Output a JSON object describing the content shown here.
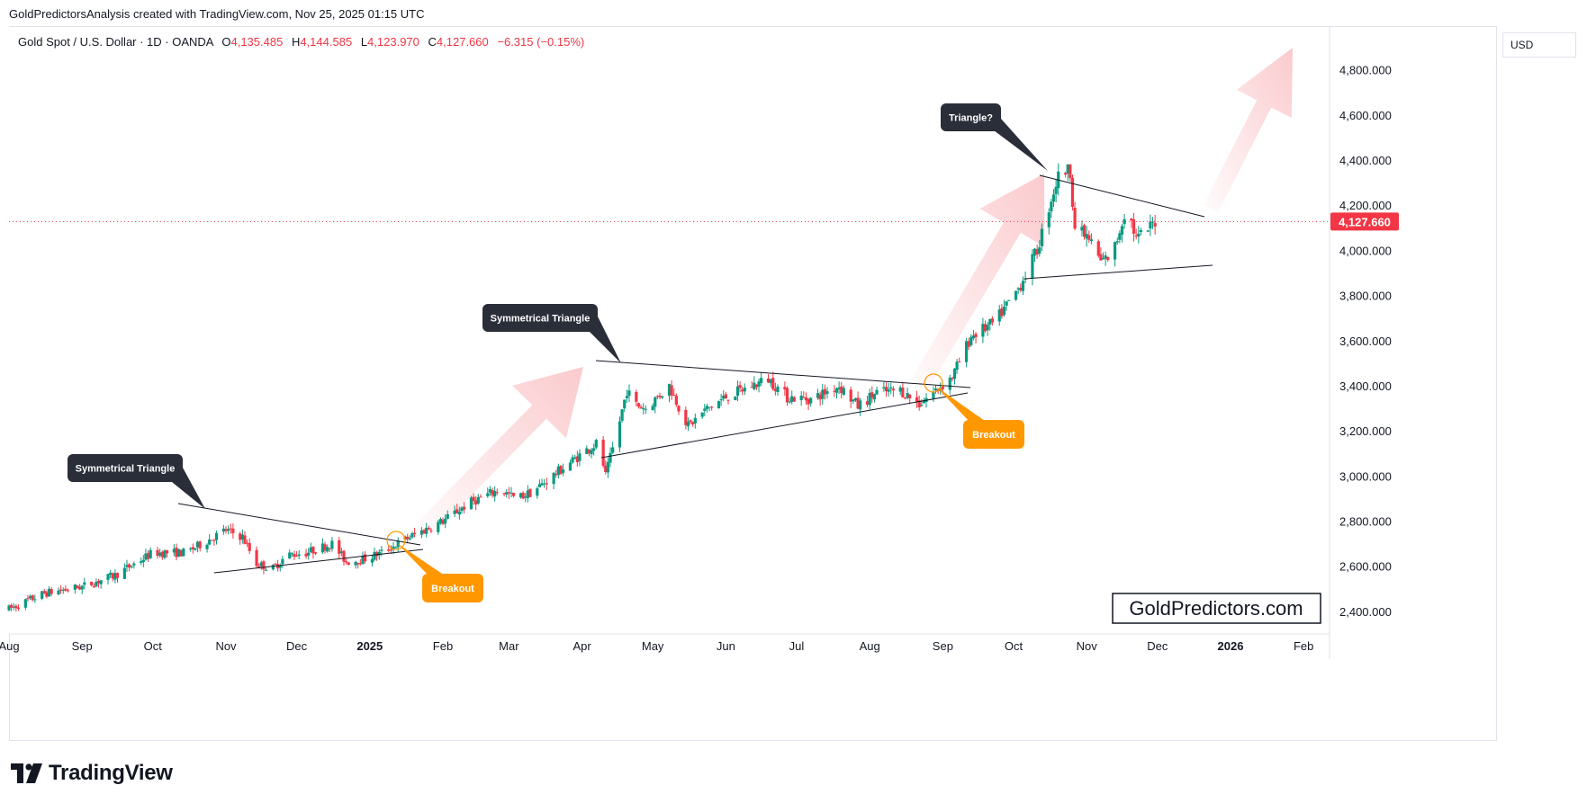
{
  "caption": "GoldPredictorsAnalysis created with TradingView.com, Nov 25, 2025 01:15 UTC",
  "symbol": {
    "name": "Gold Spot / U.S. Dollar · 1D · OANDA",
    "o_label": "O",
    "o_value": "4,135.485",
    "h_label": "H",
    "h_value": "4,144.585",
    "l_label": "L",
    "l_value": "4,123.970",
    "c_label": "C",
    "c_value": "4,127.660",
    "change": "−6.315 (−0.15%)"
  },
  "currency_button": "USD",
  "watermark": "GoldPredictors.com",
  "footer_brand": "TradingView",
  "colors": {
    "up": "#089981",
    "down": "#f23645",
    "last_price": "#f23645",
    "callout_dark": "#2a2e39",
    "callout_orange": "#ff9800",
    "arrow": "#f9b9bd"
  },
  "chart_data": {
    "type": "candlestick",
    "title": "Gold Spot / U.S. Dollar · 1D · OANDA",
    "ylim": [
      2300,
      4990
    ],
    "y_ticks": [
      {
        "value": 4800,
        "label": "4,800.000"
      },
      {
        "value": 4600,
        "label": "4,600.000"
      },
      {
        "value": 4400,
        "label": "4,400.000"
      },
      {
        "value": 4200,
        "label": "4,200.000"
      },
      {
        "value": 4000,
        "label": "4,000.000"
      },
      {
        "value": 3800,
        "label": "3,800.000"
      },
      {
        "value": 3600,
        "label": "3,600.000"
      },
      {
        "value": 3400,
        "label": "3,400.000"
      },
      {
        "value": 3200,
        "label": "3,200.000"
      },
      {
        "value": 3000,
        "label": "3,000.000"
      },
      {
        "value": 2800,
        "label": "2,800.000"
      },
      {
        "value": 2600,
        "label": "2,600.000"
      },
      {
        "value": 2400,
        "label": "2,400.000"
      }
    ],
    "x_range_days": [
      0,
      560
    ],
    "x_ticks": [
      {
        "day": 0,
        "label": "Aug",
        "bold": false
      },
      {
        "day": 31,
        "label": "Sep",
        "bold": false
      },
      {
        "day": 61,
        "label": "Oct",
        "bold": false
      },
      {
        "day": 92,
        "label": "Nov",
        "bold": false
      },
      {
        "day": 122,
        "label": "Dec",
        "bold": false
      },
      {
        "day": 153,
        "label": "2025",
        "bold": true
      },
      {
        "day": 184,
        "label": "Feb",
        "bold": false
      },
      {
        "day": 212,
        "label": "Mar",
        "bold": false
      },
      {
        "day": 243,
        "label": "Apr",
        "bold": false
      },
      {
        "day": 273,
        "label": "May",
        "bold": false
      },
      {
        "day": 304,
        "label": "Jun",
        "bold": false
      },
      {
        "day": 334,
        "label": "Jul",
        "bold": false
      },
      {
        "day": 365,
        "label": "Aug",
        "bold": false
      },
      {
        "day": 396,
        "label": "Sep",
        "bold": false
      },
      {
        "day": 426,
        "label": "Oct",
        "bold": false
      },
      {
        "day": 457,
        "label": "Nov",
        "bold": false
      },
      {
        "day": 487,
        "label": "Dec",
        "bold": false
      },
      {
        "day": 518,
        "label": "2026",
        "bold": true
      },
      {
        "day": 549,
        "label": "Feb",
        "bold": false
      }
    ],
    "last_price": {
      "value": 4127.66,
      "label": "4,127.660"
    },
    "anchors": [
      {
        "day": 0,
        "price": 2410
      },
      {
        "day": 15,
        "price": 2480
      },
      {
        "day": 31,
        "price": 2510
      },
      {
        "day": 45,
        "price": 2560
      },
      {
        "day": 61,
        "price": 2660
      },
      {
        "day": 75,
        "price": 2660
      },
      {
        "day": 92,
        "price": 2760
      },
      {
        "day": 99,
        "price": 2730
      },
      {
        "day": 105,
        "price": 2610
      },
      {
        "day": 112,
        "price": 2590
      },
      {
        "day": 118,
        "price": 2650
      },
      {
        "day": 126,
        "price": 2660
      },
      {
        "day": 137,
        "price": 2700
      },
      {
        "day": 143,
        "price": 2620
      },
      {
        "day": 150,
        "price": 2630
      },
      {
        "day": 158,
        "price": 2660
      },
      {
        "day": 170,
        "price": 2730
      },
      {
        "day": 184,
        "price": 2800
      },
      {
        "day": 195,
        "price": 2880
      },
      {
        "day": 208,
        "price": 2940
      },
      {
        "day": 215,
        "price": 2900
      },
      {
        "day": 222,
        "price": 2930
      },
      {
        "day": 233,
        "price": 3020
      },
      {
        "day": 243,
        "price": 3100
      },
      {
        "day": 250,
        "price": 3150
      },
      {
        "day": 253,
        "price": 3000
      },
      {
        "day": 258,
        "price": 3200
      },
      {
        "day": 262,
        "price": 3380
      },
      {
        "day": 265,
        "price": 3320
      },
      {
        "day": 270,
        "price": 3300
      },
      {
        "day": 280,
        "price": 3400
      },
      {
        "day": 288,
        "price": 3220
      },
      {
        "day": 295,
        "price": 3290
      },
      {
        "day": 304,
        "price": 3350
      },
      {
        "day": 315,
        "price": 3400
      },
      {
        "day": 322,
        "price": 3430
      },
      {
        "day": 330,
        "price": 3350
      },
      {
        "day": 340,
        "price": 3340
      },
      {
        "day": 352,
        "price": 3400
      },
      {
        "day": 360,
        "price": 3310
      },
      {
        "day": 368,
        "price": 3370
      },
      {
        "day": 378,
        "price": 3380
      },
      {
        "day": 386,
        "price": 3320
      },
      {
        "day": 392,
        "price": 3370
      },
      {
        "day": 400,
        "price": 3440
      },
      {
        "day": 408,
        "price": 3620
      },
      {
        "day": 418,
        "price": 3680
      },
      {
        "day": 428,
        "price": 3830
      },
      {
        "day": 436,
        "price": 4000
      },
      {
        "day": 442,
        "price": 4230
      },
      {
        "day": 446,
        "price": 4360
      },
      {
        "day": 450,
        "price": 4350
      },
      {
        "day": 452,
        "price": 4100
      },
      {
        "day": 458,
        "price": 4050
      },
      {
        "day": 463,
        "price": 3950
      },
      {
        "day": 468,
        "price": 3980
      },
      {
        "day": 474,
        "price": 4200
      },
      {
        "day": 478,
        "price": 4050
      },
      {
        "day": 482,
        "price": 4080
      },
      {
        "day": 486,
        "price": 4130
      }
    ],
    "annotations": [
      {
        "type": "callout",
        "text": "Symmetrical Triangle",
        "style": "dark"
      },
      {
        "type": "callout",
        "text": "Symmetrical Triangle",
        "style": "dark"
      },
      {
        "type": "callout",
        "text": "Triangle?",
        "style": "dark"
      },
      {
        "type": "callout",
        "text": "Breakout",
        "style": "orange"
      },
      {
        "type": "callout",
        "text": "Breakout",
        "style": "orange"
      }
    ]
  }
}
